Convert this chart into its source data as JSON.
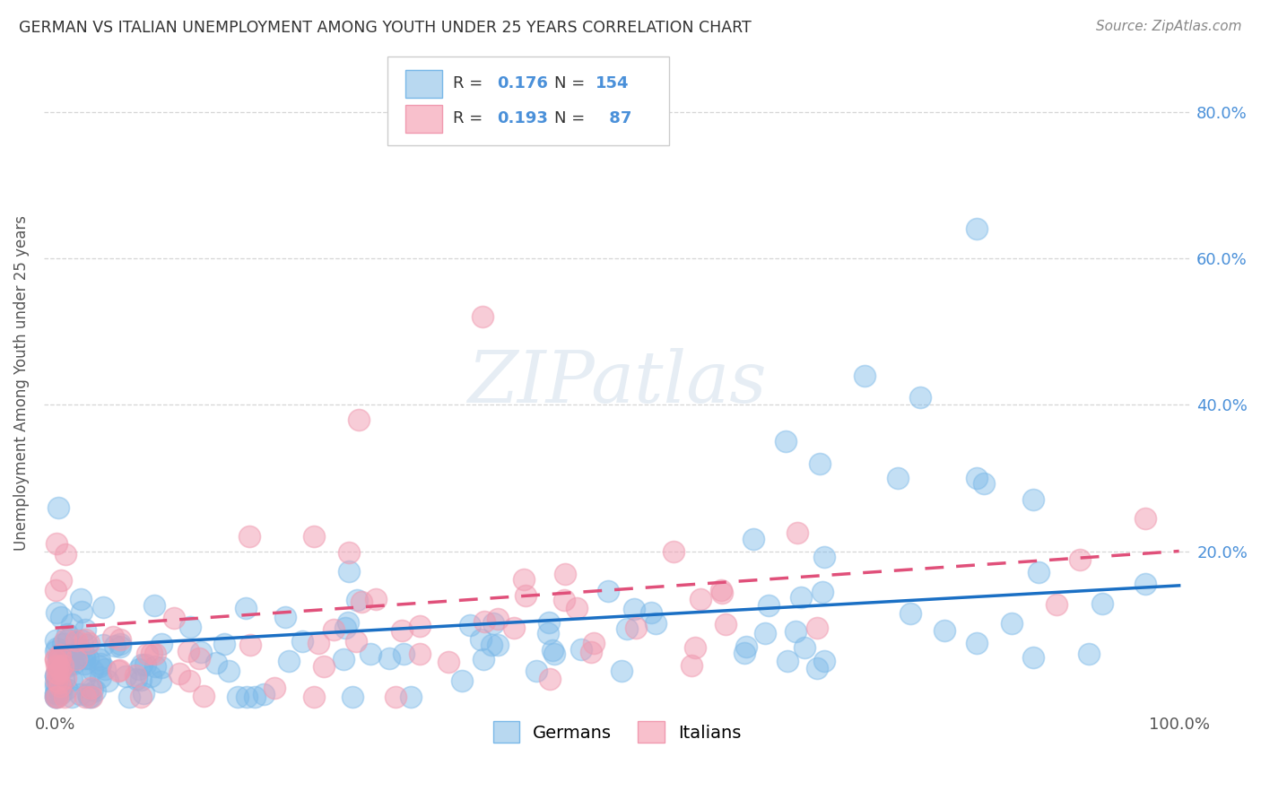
{
  "title": "GERMAN VS ITALIAN UNEMPLOYMENT AMONG YOUTH UNDER 25 YEARS CORRELATION CHART",
  "source": "Source: ZipAtlas.com",
  "ylabel": "Unemployment Among Youth under 25 years",
  "german_R": 0.176,
  "german_N": 154,
  "italian_R": 0.193,
  "italian_N": 87,
  "german_color": "#7ab8e8",
  "italian_color": "#f09ab0",
  "german_line_color": "#1a6fc4",
  "italian_line_color": "#e0507a",
  "grid_color": "#cccccc",
  "background_color": "#ffffff",
  "watermark": "ZIPatlas",
  "legend_blue_face": "#b8d8f0",
  "legend_blue_edge": "#7ab8e8",
  "legend_pink_face": "#f8c0cc",
  "legend_pink_edge": "#f09ab0",
  "legend_text_color": "#333333",
  "legend_value_color": "#4a90d9",
  "right_axis_color": "#4a90d9",
  "title_color": "#333333",
  "source_color": "#888888",
  "ylabel_color": "#555555",
  "seed": 7
}
